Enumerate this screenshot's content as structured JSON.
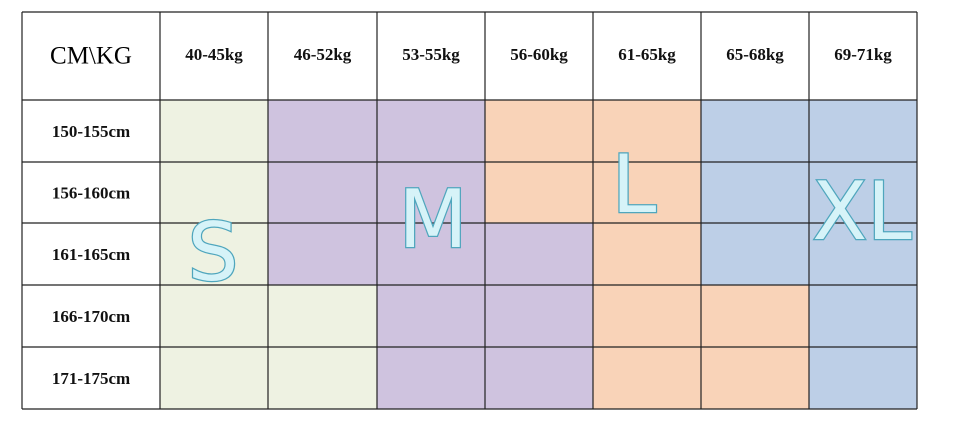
{
  "table": {
    "corner": "CM\\KG",
    "columns": [
      "40-45kg",
      "46-52kg",
      "53-55kg",
      "56-60kg",
      "61-65kg",
      "65-68kg",
      "69-71kg"
    ],
    "rows": [
      "150-155cm",
      "156-160cm",
      "161-165cm",
      "166-170cm",
      "171-175cm"
    ]
  },
  "sizes": [
    "S",
    "M",
    "L",
    "XL"
  ]
}
